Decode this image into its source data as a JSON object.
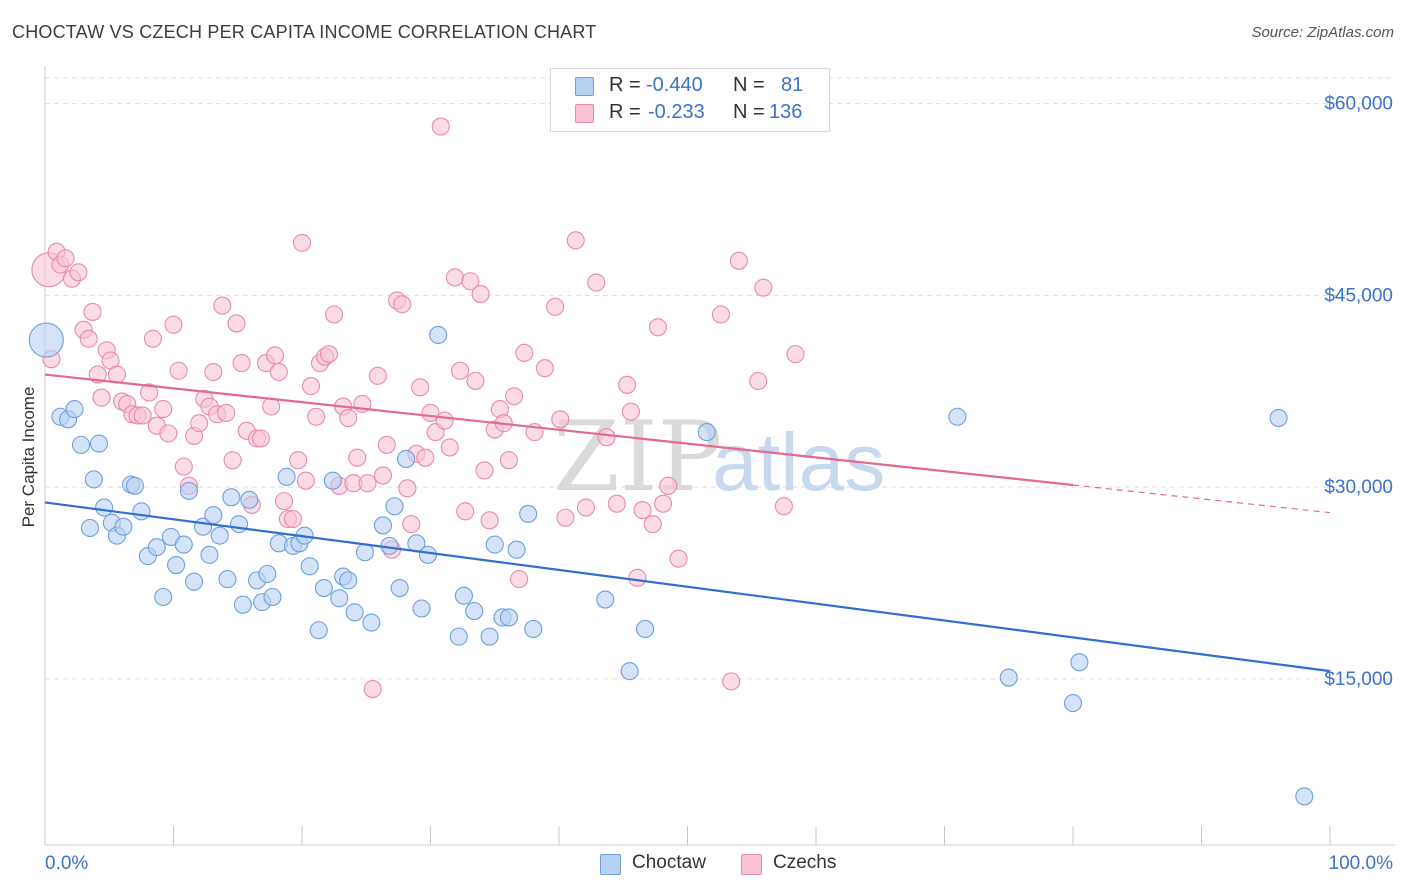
{
  "header": {
    "title": "CHOCTAW VS CZECH PER CAPITA INCOME CORRELATION CHART",
    "source": "Source: ZipAtlas.com"
  },
  "legend": {
    "choctaw": {
      "r_label": "R =",
      "r_value": "-0.440",
      "n_label": "N =",
      "n_value": "81"
    },
    "czechs": {
      "r_label": "R =",
      "r_value": "-0.233",
      "n_label": "N =",
      "n_value": "136"
    }
  },
  "watermark": {
    "zip": "ZIP",
    "atlas": "atlas"
  },
  "colors": {
    "choctaw_fill": "#b8d1f3",
    "choctaw_stroke": "#6f9fdd",
    "choctaw_line": "#2f6fd0",
    "czechs_fill": "#f9c3d3",
    "czechs_stroke": "#e98aaa",
    "czechs_line": "#e56890",
    "tick_label": "#3a73c8",
    "grid": "#dddddd"
  },
  "chart_data": {
    "type": "scatter",
    "title": "CHOCTAW VS CZECH PER CAPITA INCOME CORRELATION CHART",
    "xlabel": "",
    "ylabel": "Per Capita Income",
    "xlim": [
      0,
      100
    ],
    "ylim": [
      2000,
      62000
    ],
    "x_tick_labels": [
      "0.0%",
      "100.0%"
    ],
    "y_ticks": [
      15000,
      30000,
      45000,
      60000
    ],
    "y_tick_labels": [
      "$15,000",
      "$30,000",
      "$45,000",
      "$60,000"
    ],
    "grid": true,
    "legend_position": "top-center",
    "series": [
      {
        "name": "Choctaw",
        "trend": {
          "x": [
            0,
            100
          ],
          "y": [
            28800,
            15600
          ],
          "dashed_from": null
        },
        "points": [
          [
            0.1,
            41500
          ],
          [
            1.2,
            35500
          ],
          [
            1.8,
            35300
          ],
          [
            2.3,
            36100
          ],
          [
            2.8,
            33300
          ],
          [
            3.5,
            26800
          ],
          [
            3.8,
            30600
          ],
          [
            4.2,
            33400
          ],
          [
            4.6,
            28400
          ],
          [
            5.2,
            27200
          ],
          [
            5.6,
            26200
          ],
          [
            6.1,
            26900
          ],
          [
            6.7,
            30200
          ],
          [
            7.0,
            30100
          ],
          [
            7.5,
            28100
          ],
          [
            8.0,
            24600
          ],
          [
            8.7,
            25300
          ],
          [
            9.2,
            21400
          ],
          [
            9.8,
            26100
          ],
          [
            10.2,
            23900
          ],
          [
            10.8,
            25500
          ],
          [
            11.2,
            29700
          ],
          [
            11.6,
            22600
          ],
          [
            12.3,
            26900
          ],
          [
            12.8,
            24700
          ],
          [
            13.1,
            27800
          ],
          [
            13.6,
            26200
          ],
          [
            14.2,
            22800
          ],
          [
            14.5,
            29200
          ],
          [
            15.1,
            27100
          ],
          [
            15.4,
            20800
          ],
          [
            15.9,
            29000
          ],
          [
            16.5,
            22700
          ],
          [
            16.9,
            21000
          ],
          [
            17.3,
            23200
          ],
          [
            17.7,
            21400
          ],
          [
            18.2,
            25600
          ],
          [
            18.8,
            30800
          ],
          [
            19.3,
            25400
          ],
          [
            19.8,
            25600
          ],
          [
            20.2,
            26200
          ],
          [
            20.6,
            23800
          ],
          [
            21.3,
            18800
          ],
          [
            21.7,
            22100
          ],
          [
            22.4,
            30500
          ],
          [
            22.9,
            21300
          ],
          [
            23.2,
            23000
          ],
          [
            23.6,
            22700
          ],
          [
            24.1,
            20200
          ],
          [
            24.9,
            24900
          ],
          [
            25.4,
            19400
          ],
          [
            26.3,
            27000
          ],
          [
            26.8,
            25400
          ],
          [
            27.2,
            28500
          ],
          [
            27.6,
            22100
          ],
          [
            28.1,
            32200
          ],
          [
            28.9,
            25600
          ],
          [
            29.3,
            20500
          ],
          [
            29.8,
            24700
          ],
          [
            30.6,
            41900
          ],
          [
            32.2,
            18300
          ],
          [
            32.6,
            21500
          ],
          [
            33.4,
            20300
          ],
          [
            34.6,
            18300
          ],
          [
            35.0,
            25500
          ],
          [
            35.6,
            19800
          ],
          [
            36.1,
            19800
          ],
          [
            36.7,
            25100
          ],
          [
            37.6,
            27900
          ],
          [
            38.0,
            18900
          ],
          [
            43.6,
            21200
          ],
          [
            45.5,
            15600
          ],
          [
            46.7,
            18900
          ],
          [
            51.5,
            34300
          ],
          [
            71.0,
            35500
          ],
          [
            75.0,
            15100
          ],
          [
            80.0,
            13100
          ],
          [
            80.5,
            16300
          ],
          [
            96.0,
            35400
          ],
          [
            98.0,
            5800
          ]
        ]
      },
      {
        "name": "Czechs",
        "trend": {
          "x": [
            0,
            100
          ],
          "y": [
            38800,
            28000
          ],
          "dashed_from": 80
        },
        "points": [
          [
            0.3,
            47000
          ],
          [
            0.5,
            40000
          ],
          [
            0.9,
            48400
          ],
          [
            1.2,
            47400
          ],
          [
            1.6,
            47900
          ],
          [
            2.1,
            46300
          ],
          [
            2.6,
            46800
          ],
          [
            3.0,
            42300
          ],
          [
            3.4,
            41600
          ],
          [
            3.7,
            43700
          ],
          [
            4.1,
            38800
          ],
          [
            4.4,
            37000
          ],
          [
            4.8,
            40700
          ],
          [
            5.1,
            39900
          ],
          [
            5.6,
            38800
          ],
          [
            6.0,
            36700
          ],
          [
            6.4,
            36500
          ],
          [
            6.8,
            35700
          ],
          [
            7.2,
            35600
          ],
          [
            7.6,
            35600
          ],
          [
            8.1,
            37400
          ],
          [
            8.4,
            41600
          ],
          [
            8.7,
            34800
          ],
          [
            9.2,
            36100
          ],
          [
            9.6,
            34200
          ],
          [
            10.0,
            42700
          ],
          [
            10.4,
            39100
          ],
          [
            10.8,
            31600
          ],
          [
            11.2,
            30100
          ],
          [
            11.6,
            34000
          ],
          [
            12.0,
            35000
          ],
          [
            12.4,
            36900
          ],
          [
            12.8,
            36300
          ],
          [
            13.1,
            39000
          ],
          [
            13.4,
            35700
          ],
          [
            13.8,
            44200
          ],
          [
            14.1,
            35800
          ],
          [
            14.6,
            32100
          ],
          [
            14.9,
            42800
          ],
          [
            15.3,
            39700
          ],
          [
            15.7,
            34400
          ],
          [
            16.1,
            28600
          ],
          [
            16.5,
            33800
          ],
          [
            16.8,
            33800
          ],
          [
            17.2,
            39700
          ],
          [
            17.6,
            36300
          ],
          [
            17.9,
            40300
          ],
          [
            18.2,
            39000
          ],
          [
            18.6,
            28900
          ],
          [
            18.9,
            27500
          ],
          [
            19.3,
            27500
          ],
          [
            19.7,
            32100
          ],
          [
            20.0,
            49100
          ],
          [
            20.3,
            30500
          ],
          [
            20.7,
            37900
          ],
          [
            21.1,
            35500
          ],
          [
            21.4,
            39700
          ],
          [
            21.8,
            40200
          ],
          [
            22.1,
            40400
          ],
          [
            22.5,
            43500
          ],
          [
            22.9,
            30100
          ],
          [
            23.2,
            36300
          ],
          [
            23.6,
            35400
          ],
          [
            24.0,
            30300
          ],
          [
            24.3,
            32300
          ],
          [
            24.7,
            36500
          ],
          [
            25.1,
            30300
          ],
          [
            25.5,
            14200
          ],
          [
            25.9,
            38700
          ],
          [
            26.3,
            30900
          ],
          [
            26.6,
            33300
          ],
          [
            27.0,
            25100
          ],
          [
            27.4,
            44600
          ],
          [
            27.8,
            44300
          ],
          [
            28.2,
            29900
          ],
          [
            28.5,
            27100
          ],
          [
            28.9,
            32600
          ],
          [
            29.2,
            37800
          ],
          [
            29.6,
            32300
          ],
          [
            30.0,
            35800
          ],
          [
            30.4,
            34300
          ],
          [
            30.8,
            58200
          ],
          [
            31.1,
            35200
          ],
          [
            31.5,
            33100
          ],
          [
            31.9,
            46400
          ],
          [
            32.3,
            39100
          ],
          [
            32.7,
            28100
          ],
          [
            33.1,
            46100
          ],
          [
            33.5,
            38300
          ],
          [
            33.9,
            45100
          ],
          [
            34.2,
            31300
          ],
          [
            34.6,
            27400
          ],
          [
            35.0,
            34500
          ],
          [
            35.4,
            36100
          ],
          [
            35.7,
            35000
          ],
          [
            36.1,
            32100
          ],
          [
            36.5,
            37100
          ],
          [
            36.9,
            22800
          ],
          [
            37.3,
            40500
          ],
          [
            38.1,
            34300
          ],
          [
            38.9,
            39300
          ],
          [
            39.7,
            44100
          ],
          [
            40.1,
            35300
          ],
          [
            40.5,
            27600
          ],
          [
            41.3,
            49300
          ],
          [
            42.1,
            28400
          ],
          [
            42.9,
            46000
          ],
          [
            43.7,
            33900
          ],
          [
            44.5,
            28700
          ],
          [
            45.3,
            38000
          ],
          [
            45.6,
            35900
          ],
          [
            46.1,
            22900
          ],
          [
            46.5,
            28200
          ],
          [
            47.3,
            27100
          ],
          [
            47.7,
            42500
          ],
          [
            48.1,
            28700
          ],
          [
            48.5,
            30100
          ],
          [
            49.3,
            24400
          ],
          [
            52.6,
            43500
          ],
          [
            53.4,
            14800
          ],
          [
            54.0,
            47700
          ],
          [
            55.5,
            38300
          ],
          [
            55.9,
            45600
          ],
          [
            57.5,
            28500
          ],
          [
            58.4,
            40400
          ]
        ]
      }
    ]
  }
}
